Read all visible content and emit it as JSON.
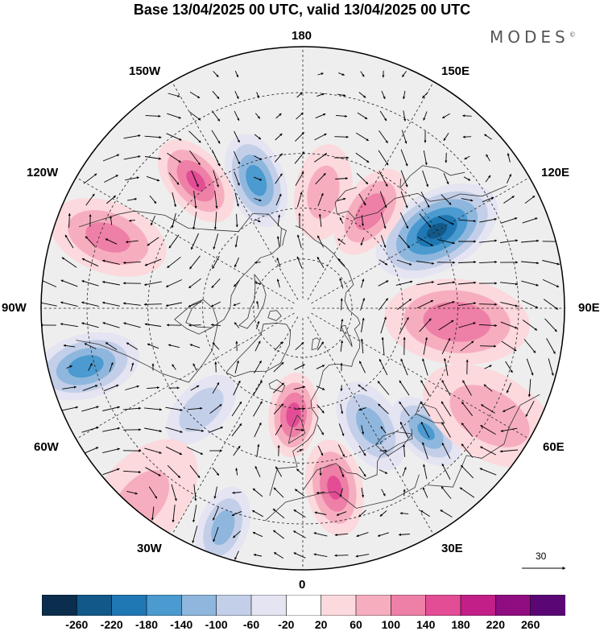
{
  "title": "Base 13/04/2025 00 UTC, valid 13/04/2025 00 UTC",
  "brand": {
    "text": "MODES",
    "mark": "©"
  },
  "longitude_labels": {
    "top": "180",
    "bottom": "0",
    "left": "90W",
    "right": "90E",
    "upper_left_1": "150W",
    "upper_left_2": "120W",
    "upper_right_1": "150E",
    "upper_right_2": "120E",
    "lower_left_1": "60W",
    "lower_left_2": "30W",
    "lower_right_1": "60E",
    "lower_right_2": "30E"
  },
  "reference_vector": {
    "value": "30"
  },
  "colorbar": {
    "ticks": [
      "-260",
      "-220",
      "-180",
      "-140",
      "-100",
      "-60",
      "-20",
      "20",
      "60",
      "100",
      "140",
      "180",
      "220",
      "260"
    ],
    "colors": [
      "#0b2d4e",
      "#12598a",
      "#1f78b4",
      "#4b9ad0",
      "#8fb7dd",
      "#c3cfe8",
      "#e4e4f2",
      "#ffffff",
      "#fbd9dc",
      "#f6aebf",
      "#ee7fa6",
      "#e34d96",
      "#c21f88",
      "#8f0d80",
      "#5a0775"
    ]
  },
  "anomaly_centers": [
    {
      "lon": -160,
      "lat": 50,
      "value": -160,
      "spread": 8
    },
    {
      "lon": -140,
      "lat": 42,
      "value": 140,
      "spread": 8
    },
    {
      "lon": -110,
      "lat": 32,
      "value": 110,
      "spread": 10
    },
    {
      "lon": -75,
      "lat": 28,
      "value": -160,
      "spread": 9
    },
    {
      "lon": -45,
      "lat": 48,
      "value": -90,
      "spread": 7
    },
    {
      "lon": -40,
      "lat": 22,
      "value": 60,
      "spread": 12
    },
    {
      "lon": -20,
      "lat": 26,
      "value": -120,
      "spread": 7
    },
    {
      "lon": -5,
      "lat": 58,
      "value": 150,
      "spread": 7
    },
    {
      "lon": 10,
      "lat": 38,
      "value": 140,
      "spread": 8
    },
    {
      "lon": 30,
      "lat": 50,
      "value": -120,
      "spread": 8
    },
    {
      "lon": 45,
      "lat": 40,
      "value": -140,
      "spread": 7
    },
    {
      "lon": 60,
      "lat": 30,
      "value": 80,
      "spread": 12
    },
    {
      "lon": 85,
      "lat": 45,
      "value": 130,
      "spread": 12
    },
    {
      "lon": 120,
      "lat": 45,
      "value": -220,
      "spread": 11
    },
    {
      "lon": 145,
      "lat": 55,
      "value": 120,
      "spread": 8
    },
    {
      "lon": 170,
      "lat": 55,
      "value": 70,
      "spread": 8
    }
  ]
}
